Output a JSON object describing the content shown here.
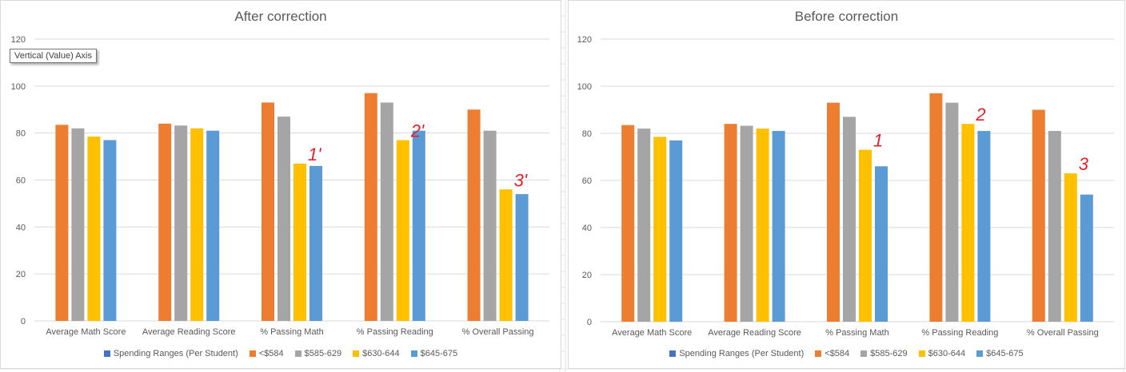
{
  "charts": [
    {
      "title": "After correction",
      "tooltip": "Vertical (Value) Axis",
      "annotations": [
        "1'",
        "2'",
        "3'"
      ]
    },
    {
      "title": "Before correction",
      "annotations": [
        "1",
        "2",
        "3"
      ]
    }
  ],
  "chart_data": [
    {
      "type": "bar",
      "title": "After correction",
      "categories": [
        "Average Math Score",
        "Average Reading Score",
        "% Passing Math",
        "% Passing Reading",
        "% Overall Passing"
      ],
      "y_ticks": [
        "0",
        "20",
        "40",
        "60",
        "80",
        "100",
        "120"
      ],
      "ylim": [
        0,
        120
      ],
      "grid": true,
      "legend_position": "bottom",
      "legend_title": "Spending Ranges (Per Student)",
      "series": [
        {
          "name": "<$584",
          "color": "#ED7D31",
          "values": [
            83.5,
            84,
            93,
            97,
            90
          ]
        },
        {
          "name": "$585-629",
          "color": "#A5A5A5",
          "values": [
            82,
            83.2,
            87,
            93,
            81
          ]
        },
        {
          "name": "$630-644",
          "color": "#FFC000",
          "values": [
            78.5,
            82,
            67,
            77,
            56
          ]
        },
        {
          "name": "$645-675",
          "color": "#5B9BD5",
          "values": [
            77,
            81,
            66,
            81,
            54
          ]
        }
      ]
    },
    {
      "type": "bar",
      "title": "Before correction",
      "categories": [
        "Average Math Score",
        "Average Reading Score",
        "% Passing Math",
        "% Passing Reading",
        "% Overall Passing"
      ],
      "y_ticks": [
        "0",
        "20",
        "40",
        "60",
        "80",
        "100",
        "120"
      ],
      "ylim": [
        0,
        120
      ],
      "grid": true,
      "legend_position": "bottom",
      "legend_title": "Spending Ranges (Per Student)",
      "series": [
        {
          "name": "<$584",
          "color": "#ED7D31",
          "values": [
            83.5,
            84,
            93,
            97,
            90
          ]
        },
        {
          "name": "$585-629",
          "color": "#A5A5A5",
          "values": [
            82,
            83.2,
            87,
            93,
            81
          ]
        },
        {
          "name": "$630-644",
          "color": "#FFC000",
          "values": [
            78.5,
            82,
            73,
            84,
            63
          ]
        },
        {
          "name": "$645-675",
          "color": "#5B9BD5",
          "values": [
            77,
            81,
            66,
            81,
            54
          ]
        }
      ]
    }
  ],
  "colors": {
    "legend_title_swatch": "#4472C4",
    "annotation": "#E0202A",
    "grid": "#D9D9D9",
    "axis_text": "#595959"
  }
}
